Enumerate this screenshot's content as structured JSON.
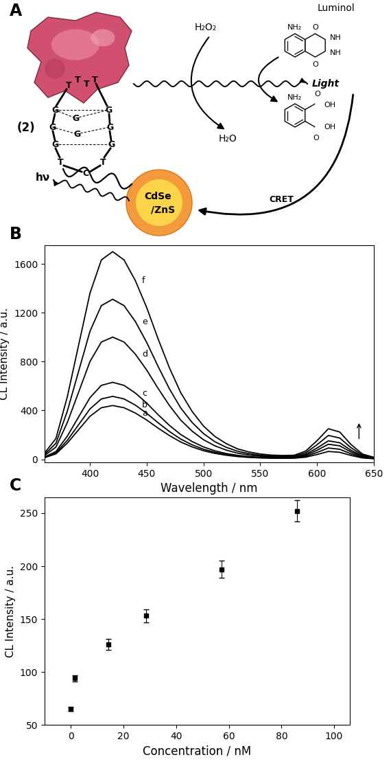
{
  "diagram": {
    "panel": "A",
    "luminol": {
      "name": "Luminol",
      "groups": [
        "NH₂",
        "O",
        "NH",
        "NH",
        "O"
      ]
    },
    "product": {
      "groups": [
        "NH₂",
        "O",
        "OH",
        "OH",
        "O"
      ]
    },
    "reactant": "H₂O₂",
    "byproduct": "H₂O",
    "aptamer": {
      "label": "(2)",
      "bases": [
        "T",
        "T",
        "T",
        "T",
        "G",
        "G",
        "G",
        "G",
        "G",
        "G",
        "G",
        "G",
        "T",
        "T",
        "C"
      ]
    },
    "emission": "hν",
    "light": "Light",
    "transfer": "CRET",
    "quantum_dot": [
      "CdSe",
      "/ZnS"
    ]
  },
  "chart_data": [
    {
      "type": "line",
      "title": "B",
      "xlabel": "Wavelength / nm",
      "ylabel": "CL Intensity / a.u.",
      "x": [
        360,
        370,
        380,
        390,
        400,
        410,
        420,
        430,
        440,
        450,
        460,
        470,
        480,
        490,
        500,
        510,
        520,
        530,
        540,
        550,
        560,
        570,
        580,
        590,
        600,
        610,
        620,
        630,
        640,
        650
      ],
      "series": [
        {
          "name": "a",
          "color": "#000000",
          "values": [
            13,
            44,
            132,
            242,
            352,
            422,
            440,
            422,
            378,
            321,
            255,
            194,
            141,
            101,
            70,
            48,
            33,
            22,
            15,
            11,
            9,
            8,
            9,
            17,
            39,
            64,
            57,
            31,
            11,
            4
          ]
        },
        {
          "name": "b",
          "color": "#000000",
          "values": [
            15,
            52,
            155,
            283,
            412,
            494,
            515,
            494,
            443,
            376,
            299,
            227,
            165,
            118,
            82,
            57,
            39,
            26,
            18,
            13,
            10,
            10,
            11,
            24,
            56,
            92,
            82,
            44,
            16,
            6
          ]
        },
        {
          "name": "c",
          "color": "#000000",
          "values": [
            19,
            63,
            189,
            347,
            504,
            605,
            630,
            605,
            542,
            460,
            365,
            277,
            202,
            145,
            101,
            69,
            47,
            32,
            22,
            16,
            13,
            12,
            14,
            32,
            74,
            123,
            110,
            59,
            21,
            8
          ]
        },
        {
          "name": "d",
          "color": "#000000",
          "values": [
            30,
            100,
            300,
            550,
            800,
            960,
            1000,
            960,
            860,
            730,
            580,
            440,
            320,
            230,
            160,
            110,
            75,
            50,
            35,
            25,
            20,
            18,
            20,
            41,
            92,
            151,
            135,
            73,
            26,
            10
          ]
        },
        {
          "name": "e",
          "color": "#000000",
          "values": [
            39,
            131,
            393,
            721,
            1048,
            1258,
            1310,
            1258,
            1127,
            956,
            760,
            576,
            419,
            301,
            210,
            144,
            98,
            66,
            46,
            33,
            26,
            24,
            26,
            53,
            119,
            195,
            174,
            94,
            34,
            13
          ]
        },
        {
          "name": "f",
          "color": "#000000",
          "values": [
            51,
            170,
            510,
            935,
            1360,
            1632,
            1700,
            1632,
            1462,
            1241,
            986,
            748,
            544,
            391,
            272,
            187,
            128,
            85,
            60,
            43,
            34,
            31,
            33,
            67,
            152,
            250,
            223,
            120,
            43,
            16
          ]
        }
      ],
      "xlim": [
        360,
        650
      ],
      "ylim": [
        -25,
        1750
      ],
      "xticks": [
        400,
        450,
        500,
        550,
        600,
        650
      ],
      "yticks": [
        0,
        400,
        800,
        1200,
        1600
      ]
    },
    {
      "type": "scatter",
      "title": "C",
      "xlabel": "Concentration / nM",
      "ylabel": "CL Intensity / a.u.",
      "x": [
        0,
        1.4,
        14.3,
        28.6,
        57.2,
        85.8
      ],
      "values": [
        65,
        94,
        126,
        153,
        197,
        252
      ],
      "errors": [
        2,
        3,
        5,
        6,
        8,
        10
      ],
      "color": "#000000",
      "marker": "square",
      "xlim": [
        -10,
        106
      ],
      "ylim": [
        50,
        265
      ],
      "xticks": [
        0,
        20,
        40,
        60,
        80,
        100
      ],
      "yticks": [
        50,
        100,
        150,
        200,
        250
      ]
    }
  ]
}
